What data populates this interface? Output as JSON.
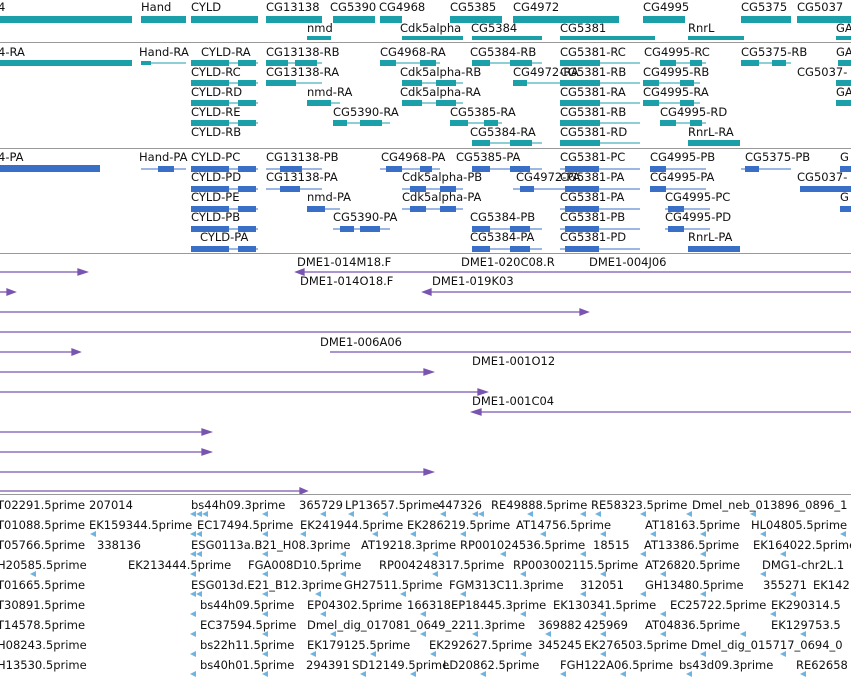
{
  "colors": {
    "gene": "#1b9fa8",
    "mrna": "#1b9fa8",
    "cds": "#3a6fc8",
    "clone": "#7a55b0",
    "est": "#6fb4e0",
    "separator": "#9a9a9a"
  },
  "tracks": {
    "genes": {
      "labels": [
        "4",
        "Hand",
        "CYLD",
        "CG13138",
        "CG5390",
        "CG4968",
        "CG5385",
        "CG4972",
        "CG4995",
        "CG5375",
        "CG5037",
        "nmd",
        "Cdk5alpha",
        "CG5384",
        "CG5381",
        "RnrL",
        "GA"
      ]
    },
    "mrna": {
      "labels": [
        "4-RA",
        "Hand-RA",
        "CYLD-RA",
        "CG13138-RB",
        "CG4968-RA",
        "CG5384-RB",
        "CG5381-RC",
        "CG4995-RC",
        "CG5375-RB",
        "GA",
        "CYLD-RC",
        "CG13138-RA",
        "Cdk5alpha-RB",
        "CG4972-RA",
        "CG5381-RB",
        "CG4995-RB",
        "CG5037-",
        "CYLD-RD",
        "nmd-RA",
        "Cdk5alpha-RA",
        "CG5381-RA",
        "CG4995-RA",
        "GA",
        "CYLD-RE",
        "CG5390-RA",
        "CG5385-RA",
        "CG5381-RB",
        "CG4995-RD",
        "CYLD-RB",
        "CG5384-RA",
        "CG5381-RD",
        "RnrL-RA"
      ]
    },
    "cds": {
      "labels": [
        "4-PA",
        "Hand-PA",
        "CYLD-PC",
        "CG13138-PB",
        "CG4968-PA",
        "CG5385-PA",
        "CG5381-PC",
        "CG4995-PB",
        "CG5375-PB",
        "G",
        "CYLD-PD",
        "CG13138-PA",
        "Cdk5alpha-PB",
        "CG4972-PA",
        "CG5381-PA",
        "CG4995-PA",
        "CG5037-",
        "CYLD-PE",
        "nmd-PA",
        "Cdk5alpha-PA",
        "CG5381-PA",
        "CG4995-PC",
        "G",
        "CYLD-PB",
        "CG5390-PA",
        "CG5384-PB",
        "CG5381-PB",
        "CG4995-PD",
        "CYLD-PA",
        "CG5384-PA",
        "CG5381-PD",
        "RnrL-PA"
      ]
    },
    "clones": {
      "labels": [
        "DME1-014M18.F",
        "DME1-020C08.R",
        "DME1-004J06",
        "DME1-014O18.F",
        "DME1-019K03",
        "DME1-006A06",
        "DME1-001O12",
        "DME1-001C04"
      ]
    },
    "ests": {
      "labels": [
        "T02291.5prime",
        "207014",
        "bs44h09.3prime",
        "365729",
        "LP13657.5prime",
        "447326",
        "RE49888.5prime",
        "RE58323.5prime",
        "Dmel_neb_013896_0896_1",
        "T01088.5prime",
        "EK159344.5prime",
        "EC17494.5prime",
        "EK241944.5prime",
        "EK286219.5prime",
        "AT14756.5prime",
        "AT18163.5prime",
        "HL04805.5prime",
        "T05766.5prime",
        "338136",
        "ESG0113a.B21_H08.3prime",
        "AT19218.3prime",
        "RP001024536.5prime",
        "18515",
        "AT13386.5prime",
        "EK164022.5prime",
        "H20585.5prime",
        "EK213444.5prime",
        "FGA008D10.5prime",
        "RP004248317.5prime",
        "RP003002115.5prime",
        "AT26820.5prime",
        "DMG1-chr2L.1",
        "T01665.5prime",
        "ESG013d.E21_B12.3prime",
        "GH27511.5prime",
        "FGM313C11.3prime",
        "312051",
        "GH13480.5prime",
        "355271",
        "EK142",
        "T30891.5prime",
        "bs44h09.5prime",
        "EP04302.5prime",
        "166318",
        "EP18445.3prime",
        "EK130341.5prime",
        "EC25722.5prime",
        "EK290314.5",
        "T14578.5prime",
        "EC37594.5prime",
        "Dmel_dig_017081_0649_2211.3prime",
        "369882",
        "425969",
        "AT04836.5prime",
        "EK129753.5",
        "H08243.5prime",
        "bs22h11.5prime",
        "EK179125.5prime",
        "EK292627.5prime",
        "345245",
        "EK276503.5prime",
        "Dmel_dig_015717_0694_0",
        "H13530.5prime",
        "bs40h01.5prime",
        "294391",
        "SD12149.5prime",
        "LD20862.5prime",
        "FGH122A06.5prime",
        "bs43d09.3prime",
        "RE62658"
      ]
    }
  }
}
